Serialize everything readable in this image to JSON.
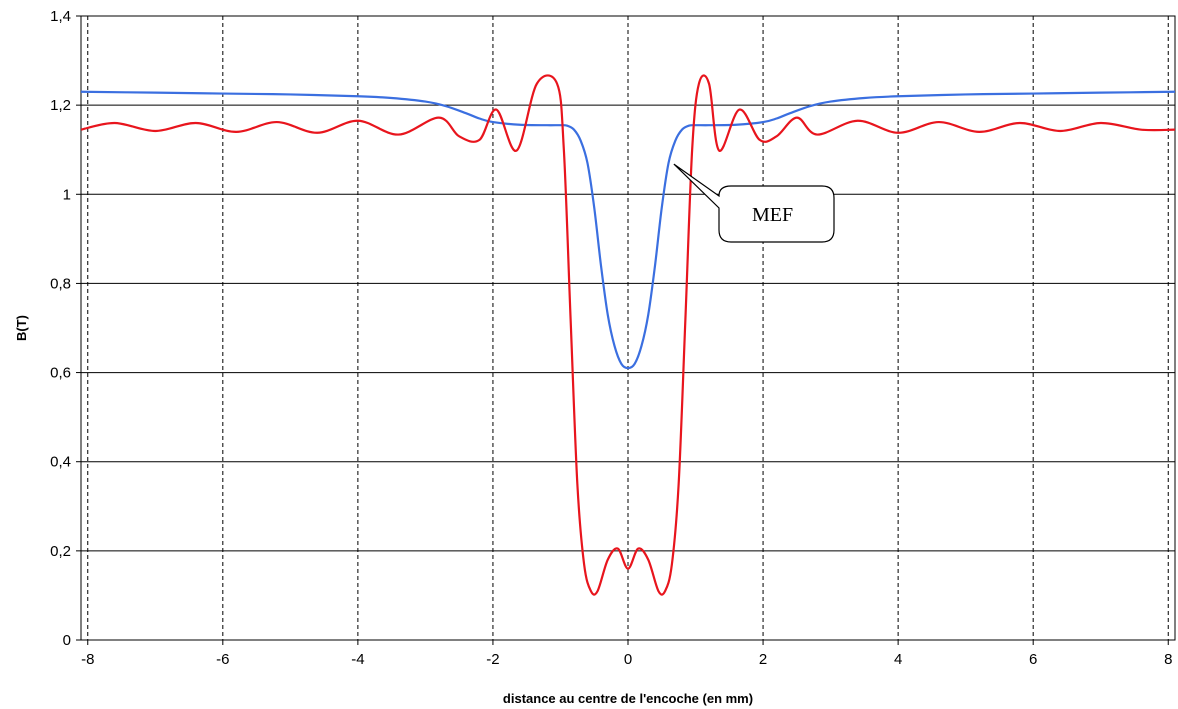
{
  "chart_data": {
    "type": "line",
    "title": "",
    "xlabel": "distance au centre de l'encoche (en mm)",
    "ylabel": "B(T)",
    "xlim": [
      -8.1,
      8.1
    ],
    "ylim": [
      0,
      1.4
    ],
    "x_ticks": [
      -8,
      -6,
      -4,
      -2,
      0,
      2,
      4,
      6,
      8
    ],
    "x_tick_labels": [
      "-8",
      "-6",
      "-4",
      "-2",
      "0",
      "2",
      "4",
      "6",
      "8"
    ],
    "y_ticks": [
      0,
      0.2,
      0.4,
      0.6,
      0.8,
      1,
      1.2,
      1.4
    ],
    "y_tick_labels": [
      "0",
      "0,2",
      "0,4",
      "0,6",
      "0,8",
      "1",
      "1,2",
      "1,4"
    ],
    "grid": {
      "horizontal": "solid",
      "vertical": "dashed"
    },
    "series": [
      {
        "color": "#3b6fe0",
        "x": [
          -8.1,
          -7,
          -6,
          -5,
          -4,
          -3.5,
          -3,
          -2.7,
          -2.4,
          -2.2,
          -2,
          -1.6,
          -1.2,
          -1,
          -0.9,
          -0.8,
          -0.7,
          -0.6,
          -0.5,
          -0.4,
          -0.3,
          -0.2,
          -0.1,
          0,
          0.1,
          0.2,
          0.3,
          0.4,
          0.5,
          0.6,
          0.7,
          0.8,
          0.9,
          1,
          1.2,
          1.6,
          2,
          2.2,
          2.4,
          2.7,
          3,
          3.5,
          4,
          5,
          6,
          7,
          8.1
        ],
        "y": [
          1.23,
          1.228,
          1.226,
          1.224,
          1.22,
          1.216,
          1.208,
          1.198,
          1.182,
          1.17,
          1.162,
          1.156,
          1.155,
          1.155,
          1.154,
          1.145,
          1.12,
          1.07,
          0.97,
          0.84,
          0.73,
          0.66,
          0.62,
          0.61,
          0.62,
          0.66,
          0.73,
          0.84,
          0.97,
          1.07,
          1.12,
          1.145,
          1.154,
          1.155,
          1.155,
          1.156,
          1.162,
          1.17,
          1.182,
          1.198,
          1.208,
          1.216,
          1.22,
          1.224,
          1.226,
          1.228,
          1.23
        ]
      },
      {
        "color": "#e8151d",
        "x": [
          -8.1,
          -7.6,
          -7,
          -6.4,
          -5.8,
          -5.2,
          -4.6,
          -4,
          -3.4,
          -2.8,
          -2.5,
          -2.2,
          -1.95,
          -1.65,
          -1.35,
          -1.05,
          -0.95,
          -0.85,
          -0.75,
          -0.65,
          -0.55,
          -0.45,
          -0.3,
          -0.15,
          0,
          0.15,
          0.3,
          0.45,
          0.55,
          0.65,
          0.75,
          0.85,
          0.95,
          1.05,
          1.2,
          1.35,
          1.65,
          1.95,
          2.2,
          2.5,
          2.8,
          3.4,
          4,
          4.6,
          5.2,
          5.8,
          6.4,
          7,
          7.6,
          8.1
        ],
        "y": [
          1.145,
          1.16,
          1.142,
          1.16,
          1.14,
          1.162,
          1.138,
          1.165,
          1.134,
          1.172,
          1.13,
          1.122,
          1.19,
          1.098,
          1.248,
          1.248,
          1.1,
          0.72,
          0.35,
          0.17,
          0.11,
          0.11,
          0.18,
          0.205,
          0.16,
          0.205,
          0.18,
          0.11,
          0.11,
          0.17,
          0.35,
          0.72,
          1.1,
          1.248,
          1.248,
          1.098,
          1.19,
          1.122,
          1.13,
          1.172,
          1.134,
          1.165,
          1.138,
          1.162,
          1.14,
          1.16,
          1.142,
          1.16,
          1.145,
          1.145
        ]
      }
    ],
    "annotations": [
      {
        "text": "MEF",
        "target_series": 0,
        "target_x": 0.65,
        "target_y": 1.07
      }
    ]
  }
}
